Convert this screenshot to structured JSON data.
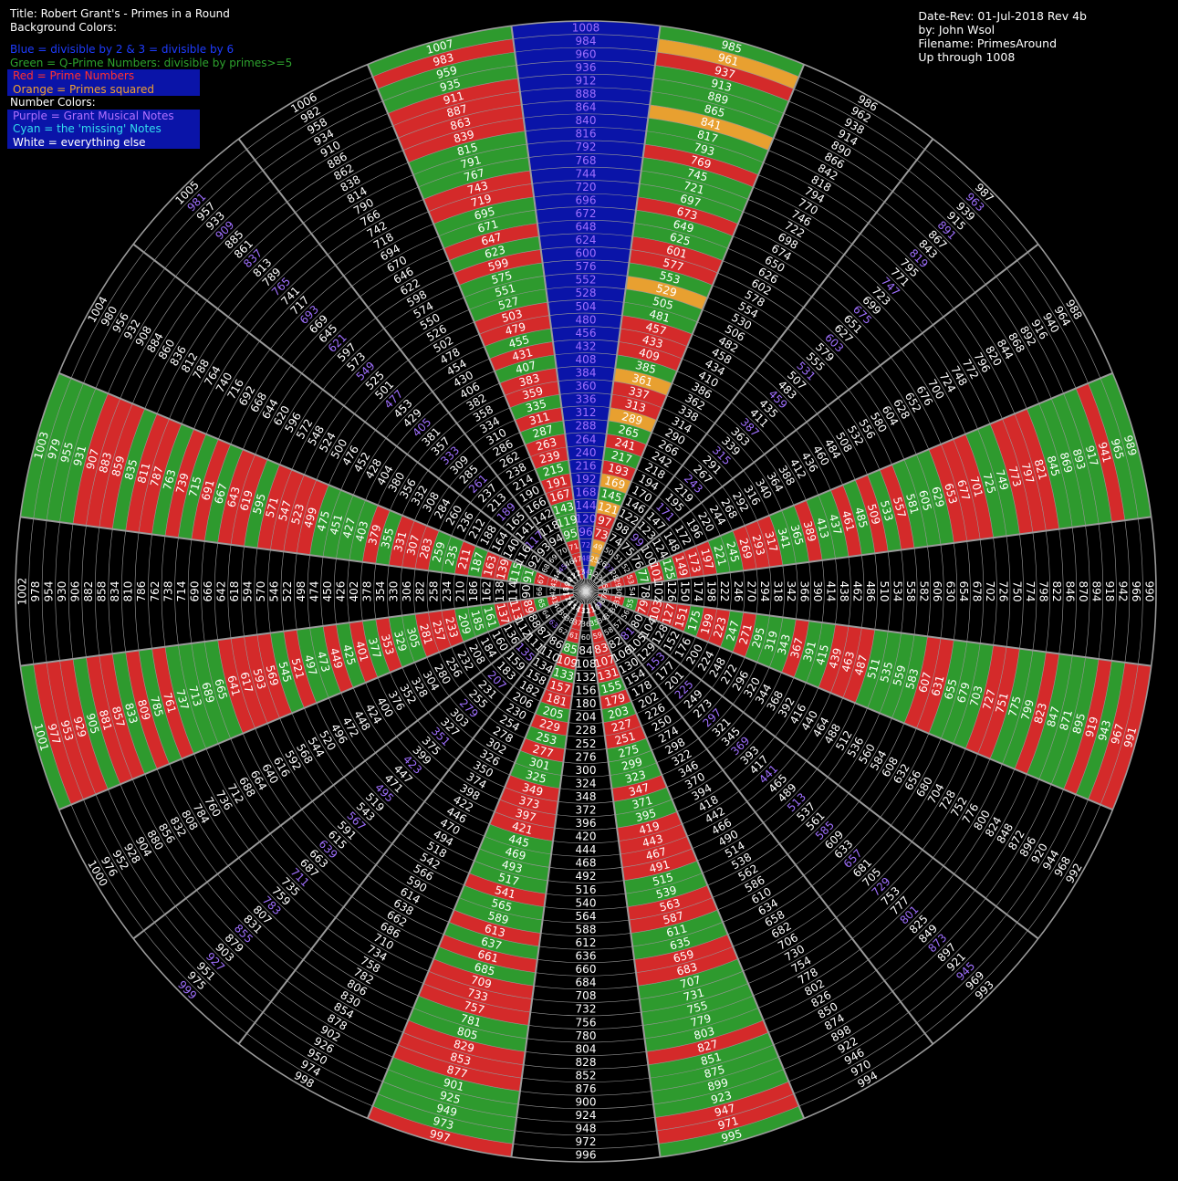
{
  "header": {
    "title": "Title: Robert Grant's - Primes in a Round",
    "background_colors_label": "Background Colors:",
    "blue_legend": "Blue = divisible by 2 & 3 = divisible by 6",
    "green_legend": "Green = Q-Prime Numbers: divisible by primes>=5",
    "red_legend": "Red = Prime Numbers",
    "orange_legend": "Orange = Primes squared",
    "number_colors_label": "Number Colors:",
    "purple_legend": "Purple = Grant Musical Notes",
    "cyan_legend": "Cyan = the 'missing' Notes",
    "white_legend": "White = everything else"
  },
  "meta": {
    "date_rev": "Date-Rev: 01-Jul-2018  Rev 4b",
    "author": "by: John Wsol",
    "filename": "Filename: PrimesAround",
    "range": "Up through 1008"
  },
  "wheel": {
    "spokes": 24,
    "max_number": 1008,
    "colors": {
      "blue": "#0a14a8",
      "green": "#2e9a2e",
      "red": "#d42a2a",
      "orange": "#e8a030",
      "grid": "#9a9a9a",
      "purple_text": "#a070ff",
      "cyan_text": "#33ddee",
      "white_text": "#ffffff"
    }
  }
}
